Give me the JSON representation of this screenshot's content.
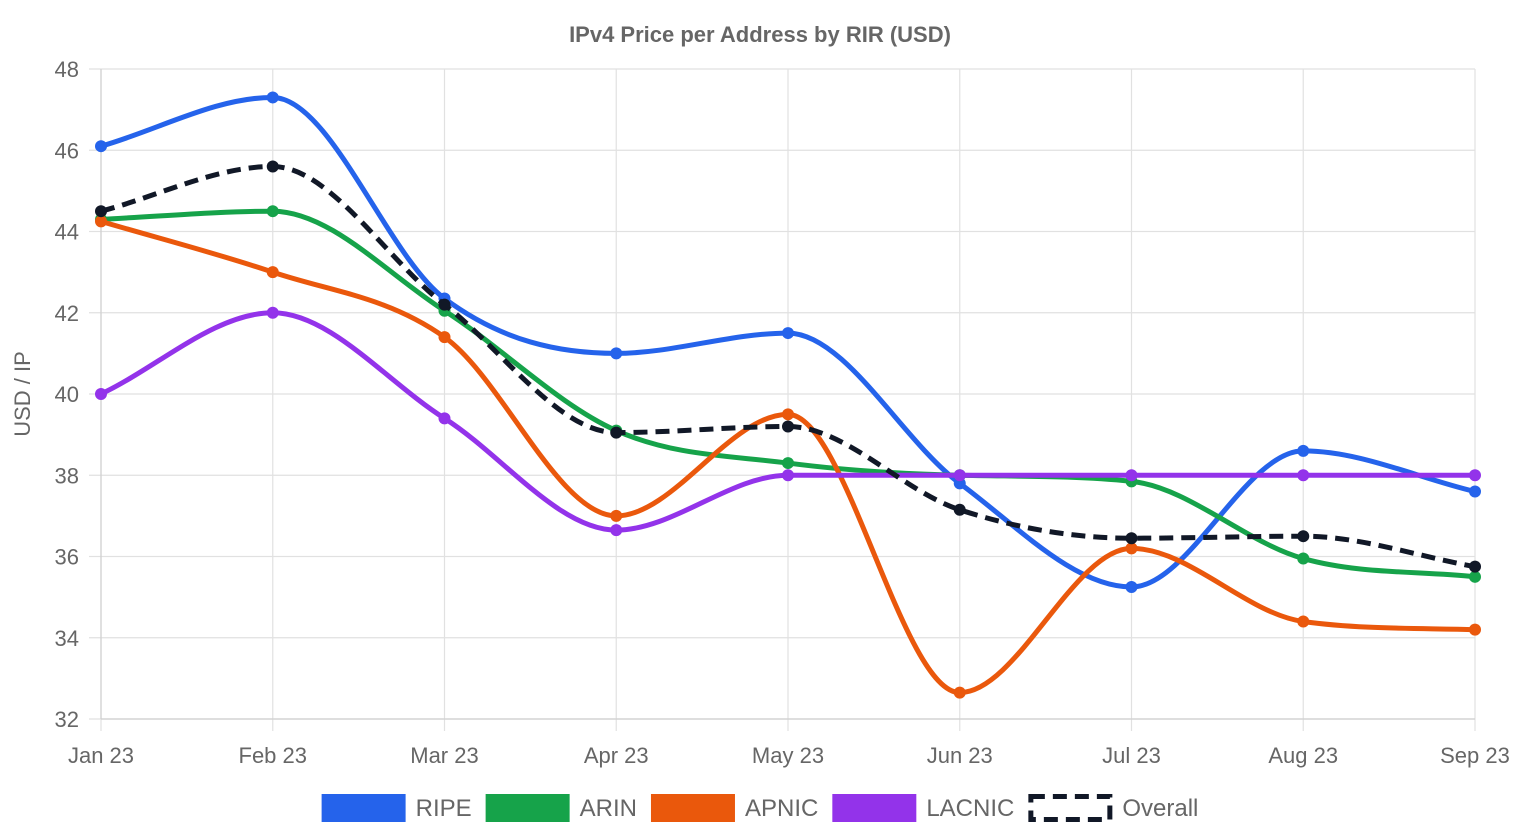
{
  "chart_data": {
    "type": "line",
    "title": "IPv4 Price per Address by RIR (USD)",
    "xlabel": "",
    "ylabel": "USD / IP",
    "categories": [
      "Jan 23",
      "Feb 23",
      "Mar 23",
      "Apr 23",
      "May 23",
      "Jun 23",
      "Jul 23",
      "Aug 23",
      "Sep 23"
    ],
    "ylim": [
      32,
      48
    ],
    "yticks": [
      "32",
      "34",
      "36",
      "38",
      "40",
      "42",
      "44",
      "46",
      "48"
    ],
    "grid": true,
    "legend_position": "bottom",
    "series": [
      {
        "name": "RIPE",
        "color": "#2563eb",
        "dashed": false,
        "values": [
          46.1,
          47.3,
          42.35,
          41.0,
          41.5,
          37.8,
          35.25,
          38.6,
          37.6
        ]
      },
      {
        "name": "ARIN",
        "color": "#16a34a",
        "dashed": false,
        "values": [
          44.3,
          44.5,
          42.05,
          39.1,
          38.3,
          38.0,
          37.85,
          35.95,
          35.5
        ]
      },
      {
        "name": "APNIC",
        "color": "#ea580c",
        "dashed": false,
        "values": [
          44.25,
          43.0,
          41.4,
          37.0,
          39.5,
          32.65,
          36.2,
          34.4,
          34.2
        ]
      },
      {
        "name": "LACNIC",
        "color": "#9333ea",
        "dashed": false,
        "values": [
          40.0,
          42.0,
          39.4,
          36.65,
          38.0,
          38.0,
          38.0,
          38.0,
          38.0
        ]
      },
      {
        "name": "Overall",
        "color": "#111827",
        "dashed": true,
        "values": [
          44.5,
          45.6,
          42.2,
          39.05,
          39.2,
          37.15,
          36.45,
          36.5,
          35.75
        ]
      }
    ]
  }
}
